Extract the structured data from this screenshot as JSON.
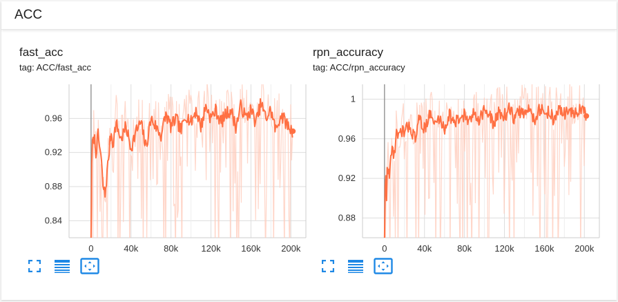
{
  "section": {
    "title": "ACC"
  },
  "toolbar": {
    "fullscreen_icon": "fullscreen-icon",
    "data_table_icon": "data-table-icon",
    "fit_domain_icon": "fit-domain-icon",
    "accent_color": "#1e88e5"
  },
  "panels": [
    {
      "title": "fast_acc",
      "tag": "tag: ACC/fast_acc"
    },
    {
      "title": "rpn_accuracy",
      "tag": "tag: ACC/rpn_accuracy"
    }
  ],
  "chart_data": [
    {
      "type": "line",
      "title": "fast_acc",
      "tag": "tag: ACC/fast_acc",
      "xlabel": "",
      "ylabel": "",
      "xlim": [
        -22000,
        215000
      ],
      "ylim": [
        0.82,
        1.0
      ],
      "xticks": [
        0,
        40000,
        80000,
        120000,
        160000,
        200000
      ],
      "xtick_labels": [
        "0",
        "40k",
        "80k",
        "120k",
        "160k",
        "200k"
      ],
      "yticks": [
        0.84,
        0.88,
        0.92,
        0.96
      ],
      "ytick_labels": [
        "0.84",
        "0.88",
        "0.92",
        "0.96"
      ],
      "grid": true,
      "colors": {
        "smoothed": "#ff7043",
        "raw": "#ffccbc"
      },
      "series": [
        {
          "x": [
            0,
            1000,
            2000,
            3000,
            5000,
            7000,
            10000,
            12000,
            14000,
            16000,
            18000,
            20000,
            22000,
            25000,
            30000,
            35000,
            40000,
            45000,
            50000,
            55000,
            60000,
            65000,
            70000,
            75000,
            80000,
            85000,
            90000,
            95000,
            100000,
            105000,
            110000,
            115000,
            120000,
            125000,
            130000,
            135000,
            140000,
            145000,
            150000,
            155000,
            160000,
            165000,
            170000,
            175000,
            180000,
            185000,
            190000,
            195000,
            200000,
            202000
          ],
          "values": [
            0.82,
            0.935,
            0.93,
            0.94,
            0.92,
            0.94,
            0.915,
            0.88,
            0.87,
            0.895,
            0.92,
            0.945,
            0.93,
            0.955,
            0.935,
            0.95,
            0.925,
            0.945,
            0.955,
            0.925,
            0.96,
            0.95,
            0.94,
            0.965,
            0.95,
            0.96,
            0.945,
            0.965,
            0.955,
            0.97,
            0.95,
            0.975,
            0.96,
            0.97,
            0.955,
            0.965,
            0.97,
            0.95,
            0.975,
            0.96,
            0.97,
            0.955,
            0.978,
            0.96,
            0.97,
            0.945,
            0.965,
            0.955,
            0.947,
            0.945
          ]
        }
      ]
    },
    {
      "type": "line",
      "title": "rpn_accuracy",
      "tag": "tag: ACC/rpn_accuracy",
      "xlabel": "",
      "ylabel": "",
      "xlim": [
        -22000,
        215000
      ],
      "ylim": [
        0.86,
        1.015
      ],
      "xticks": [
        0,
        40000,
        80000,
        120000,
        160000,
        200000
      ],
      "xtick_labels": [
        "0",
        "40k",
        "80k",
        "120k",
        "160k",
        "200k"
      ],
      "yticks": [
        0.88,
        0.92,
        0.96,
        1.0
      ],
      "ytick_labels": [
        "0.88",
        "0.92",
        "0.96",
        "1"
      ],
      "grid": true,
      "colors": {
        "smoothed": "#ff7043",
        "raw": "#ffccbc"
      },
      "series": [
        {
          "x": [
            0,
            1000,
            2000,
            3000,
            5000,
            7000,
            10000,
            12000,
            15000,
            18000,
            20000,
            25000,
            30000,
            35000,
            40000,
            45000,
            50000,
            55000,
            60000,
            65000,
            70000,
            75000,
            80000,
            85000,
            90000,
            95000,
            100000,
            105000,
            110000,
            115000,
            120000,
            125000,
            130000,
            135000,
            140000,
            145000,
            150000,
            155000,
            160000,
            165000,
            170000,
            175000,
            180000,
            185000,
            190000,
            195000,
            200000,
            202000
          ],
          "values": [
            0.86,
            0.93,
            0.9,
            0.935,
            0.92,
            0.95,
            0.945,
            0.965,
            0.96,
            0.97,
            0.965,
            0.975,
            0.96,
            0.98,
            0.97,
            0.985,
            0.975,
            0.98,
            0.97,
            0.985,
            0.975,
            0.98,
            0.985,
            0.975,
            0.988,
            0.98,
            0.99,
            0.982,
            0.975,
            0.988,
            0.983,
            0.99,
            0.98,
            0.988,
            0.985,
            0.99,
            0.98,
            0.99,
            0.985,
            0.988,
            0.978,
            0.99,
            0.985,
            0.99,
            0.983,
            0.99,
            0.985,
            0.983
          ]
        }
      ]
    }
  ]
}
